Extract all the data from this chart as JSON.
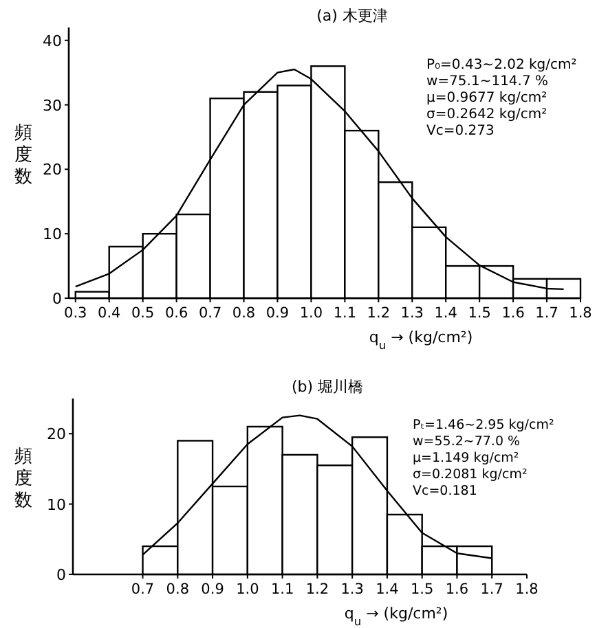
{
  "chart_data": [
    {
      "type": "histogram",
      "title": "(a) 木更津",
      "xlabel": "q$_{u}$ → (kg/cm²)",
      "ylabel": "頻度数",
      "bins": [
        0.3,
        0.4,
        0.5,
        0.6,
        0.7,
        0.8,
        0.9,
        1.0,
        1.1,
        1.2,
        1.3,
        1.4,
        1.5,
        1.6,
        1.7,
        1.8
      ],
      "series": [
        {
          "type": "histogram",
          "color": "#ffffff",
          "values": [
            1,
            8,
            10,
            13,
            31,
            32,
            33,
            36,
            26,
            18,
            11,
            5,
            5,
            3,
            3
          ]
        },
        {
          "type": "line",
          "color": "#000000",
          "x": [
            0.3,
            0.4,
            0.5,
            0.6,
            0.7,
            0.8,
            0.9,
            0.95,
            1.0,
            1.1,
            1.2,
            1.3,
            1.4,
            1.5,
            1.6,
            1.7,
            1.75
          ],
          "values": [
            1.8,
            3.8,
            7.5,
            12.8,
            21.5,
            30,
            35,
            35.5,
            34,
            29,
            22.8,
            15.5,
            9.5,
            5.1,
            2.5,
            1.5,
            1.4
          ]
        }
      ],
      "xlim": [
        0.28,
        1.8
      ],
      "xticks": [
        0.3,
        0.4,
        0.5,
        0.6,
        0.7,
        0.8,
        0.9,
        {
          "value": 1,
          "label": "1.0"
        },
        1.1,
        1.2,
        1.3,
        1.4,
        1.5,
        1.6,
        1.7,
        1.8
      ],
      "ylim": [
        0,
        42
      ],
      "yticks": [
        0,
        10,
        20,
        30,
        40
      ],
      "grid": false,
      "annotations": [
        "P₀=0.43~2.02 kg/cm²",
        "w=75.1~114.7 %",
        "μ=0.9677 kg/cm²",
        "σ=0.2642 kg/cm²",
        "Vc=0.273"
      ]
    },
    {
      "type": "histogram",
      "title": "(b) 堀川橋",
      "xlabel": "q$_{u}$ → (kg/cm²)",
      "ylabel": "頻度数",
      "bins": [
        0.7,
        0.8,
        0.9,
        1.0,
        1.1,
        1.2,
        1.3,
        1.4,
        1.5,
        1.6,
        1.7
      ],
      "series": [
        {
          "type": "histogram",
          "color": "#ffffff",
          "values": [
            4,
            19,
            12.5,
            21,
            17,
            15.5,
            19.5,
            8.5,
            4,
            4
          ]
        },
        {
          "type": "line",
          "color": "#000000",
          "x": [
            0.7,
            0.8,
            0.9,
            1.0,
            1.1,
            1.15,
            1.2,
            1.3,
            1.4,
            1.5,
            1.6,
            1.7
          ],
          "values": [
            2.8,
            7.3,
            12.9,
            18.5,
            22.3,
            22.6,
            22.1,
            18.2,
            11.9,
            5.9,
            3.0,
            2.3
          ]
        }
      ],
      "xlim": [
        0.5,
        1.8
      ],
      "xticks": [
        0.7,
        0.8,
        0.9,
        {
          "value": 1,
          "label": "1.0"
        },
        1.1,
        1.2,
        1.3,
        1.4,
        1.5,
        1.6,
        1.7,
        1.8
      ],
      "ylim": [
        0,
        25
      ],
      "yticks": [
        0,
        10,
        20
      ],
      "grid": false,
      "annotations": [
        "Pₜ=1.46~2.95 kg/cm²",
        "w=55.2~77.0 %",
        "μ=1.149 kg/cm²",
        "σ=0.2081 kg/cm²",
        "Vc=0.181"
      ]
    }
  ]
}
